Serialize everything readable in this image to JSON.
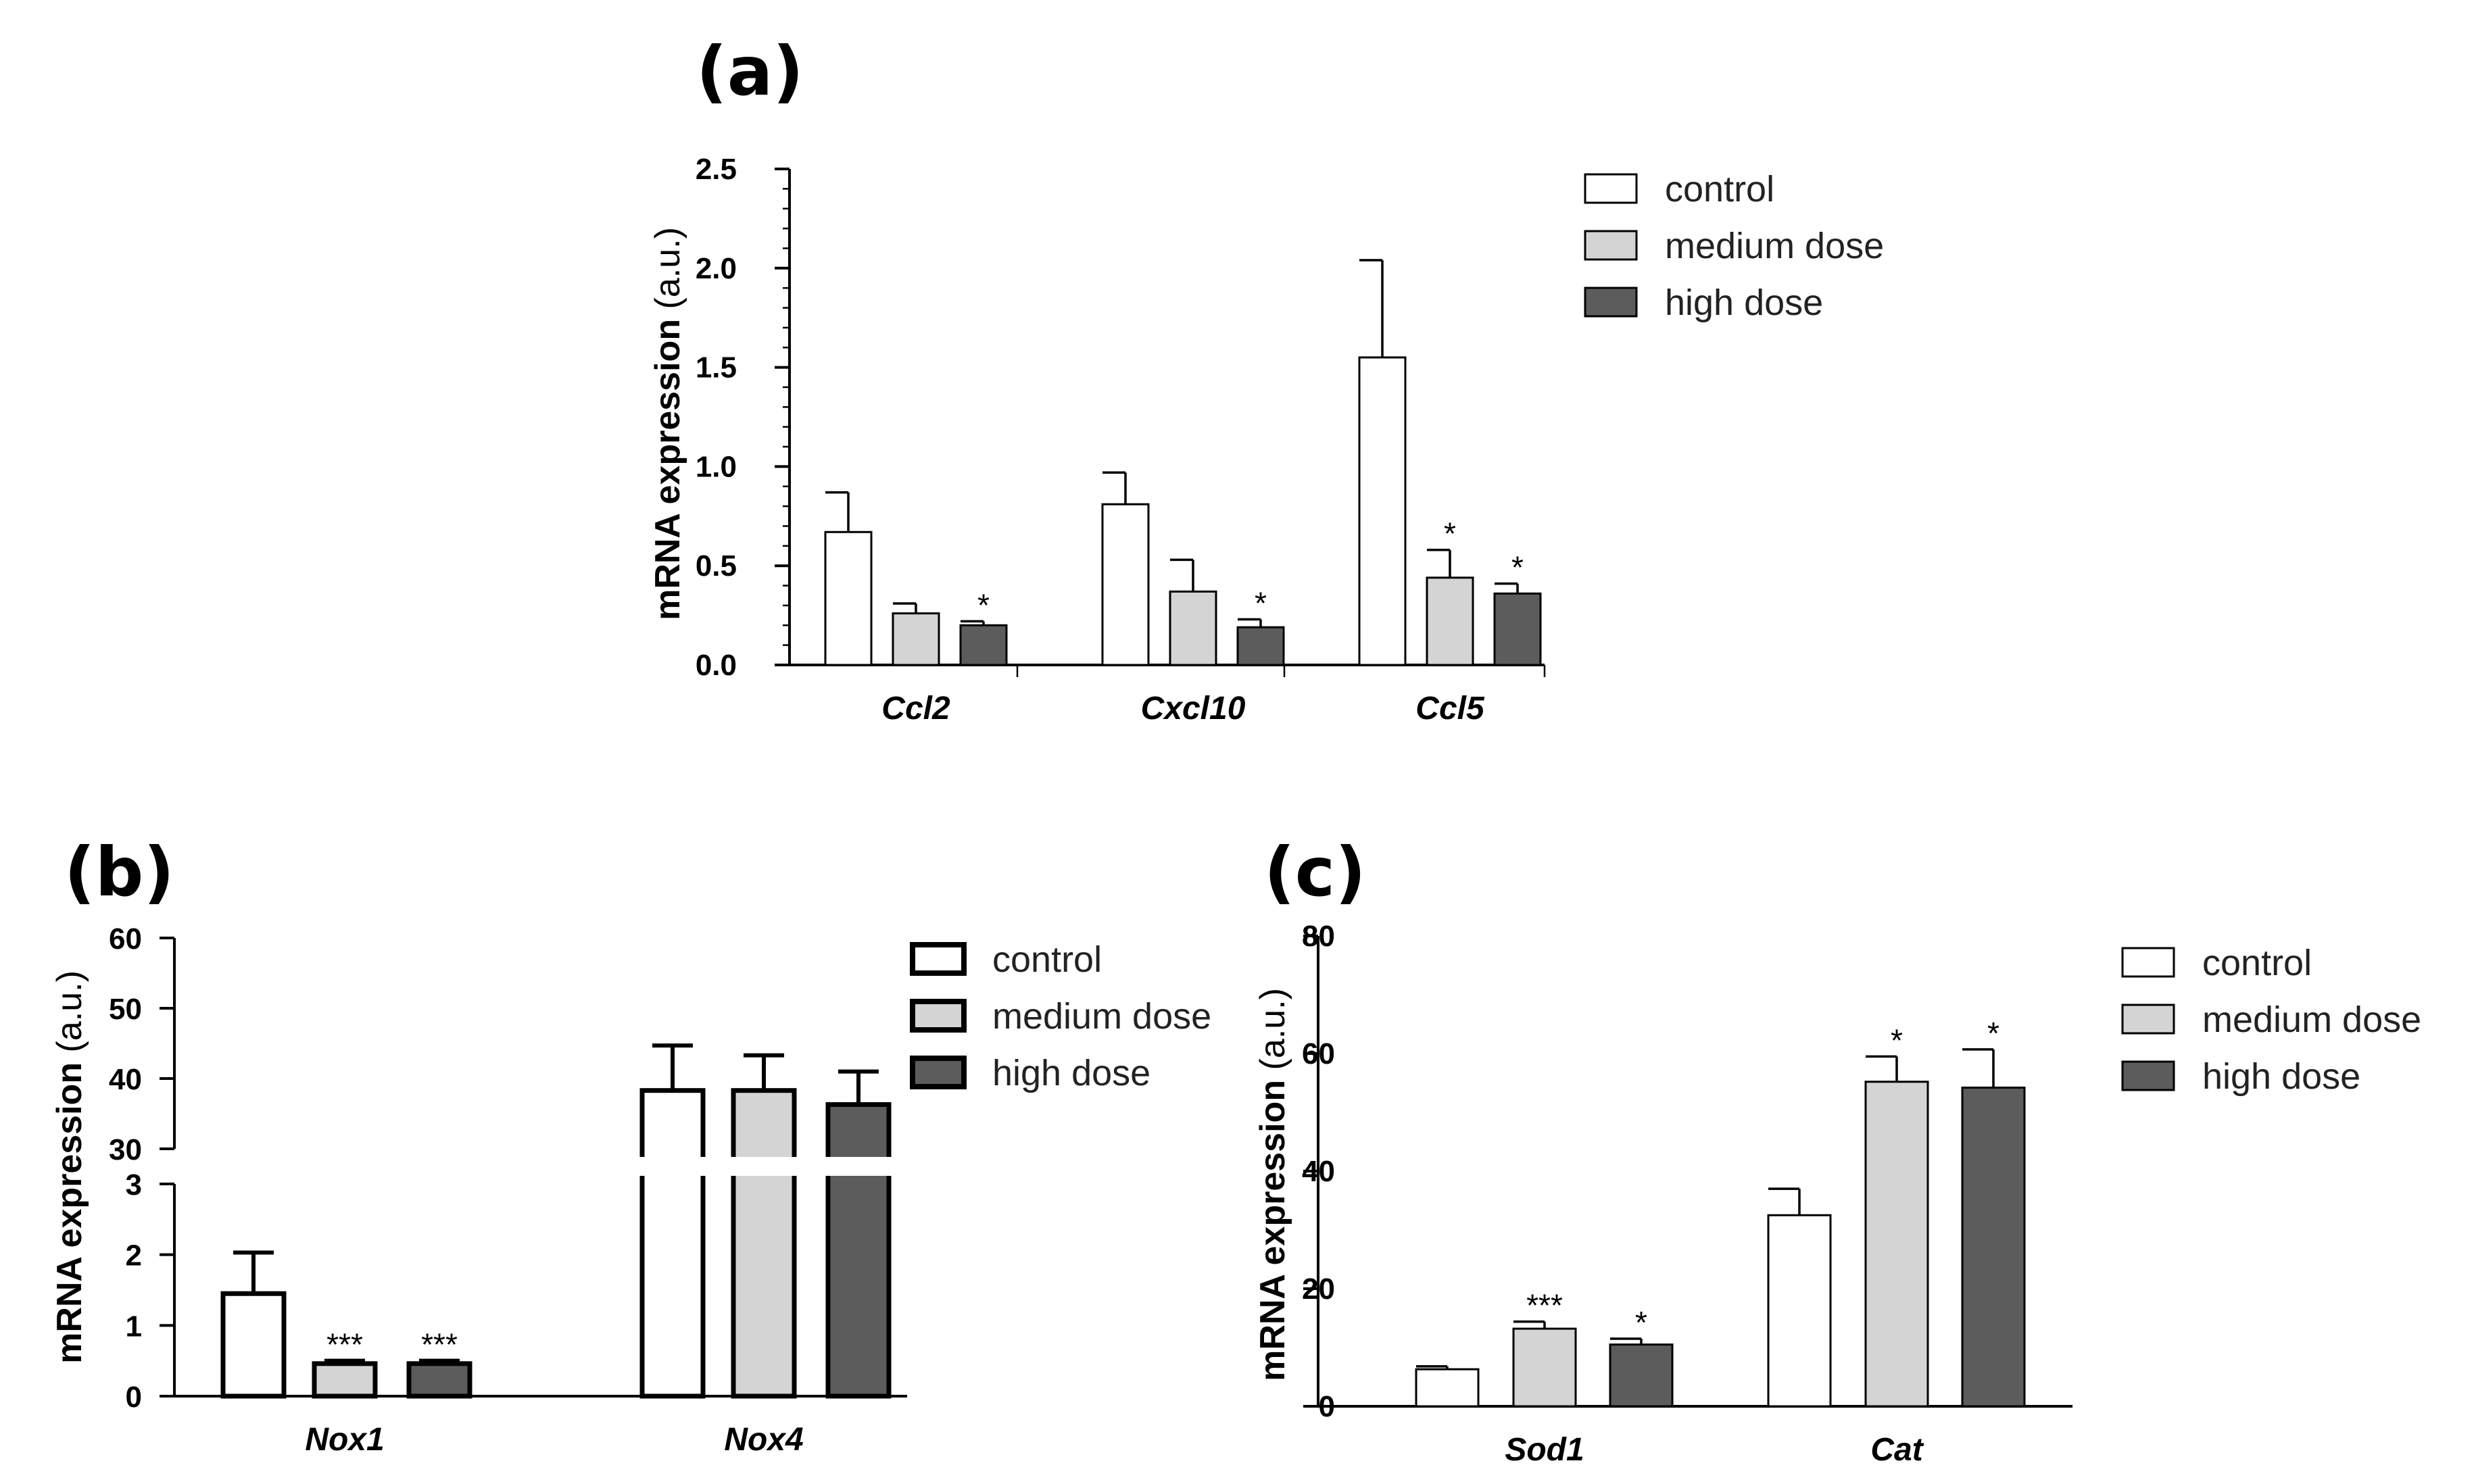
{
  "colors": {
    "control": "#ffffff",
    "medium_dose": "#d4d4d4",
    "high_dose": "#5c5c5c",
    "axis": "#000000"
  },
  "chart_data": [
    {
      "id": "a",
      "panel_label": "(a)",
      "type": "bar",
      "title": "",
      "ylabel_bold": "mRNA expression",
      "ylabel_unit": "(a.u.)",
      "categories": [
        "Ccl2",
        "Cxcl10",
        "Ccl5"
      ],
      "ylim": [
        0,
        2.5
      ],
      "yticks": [
        0,
        0.5,
        1.0,
        1.5,
        2.0,
        2.5
      ],
      "ytick_labels": [
        "0.0",
        "0.5",
        "1.0",
        "1.5",
        "2.0",
        "2.5"
      ],
      "series": [
        {
          "name": "control",
          "color": "#ffffff",
          "values": [
            0.67,
            0.81,
            1.55
          ],
          "errors": [
            0.2,
            0.16,
            0.49
          ],
          "stars": [
            "",
            "",
            ""
          ]
        },
        {
          "name": "medium dose",
          "color": "#d4d4d4",
          "values": [
            0.26,
            0.37,
            0.44
          ],
          "errors": [
            0.05,
            0.16,
            0.14
          ],
          "stars": [
            "",
            "",
            "*"
          ]
        },
        {
          "name": "high dose",
          "color": "#5c5c5c",
          "values": [
            0.2,
            0.19,
            0.36
          ],
          "errors": [
            0.02,
            0.04,
            0.05
          ],
          "stars": [
            "*",
            "*",
            "*"
          ]
        }
      ],
      "legend": [
        "control",
        "medium dose",
        "high dose"
      ]
    },
    {
      "id": "b",
      "panel_label": "(b)",
      "type": "bar",
      "title": "",
      "ylabel_bold": "mRNA expression",
      "ylabel_unit": "(a.u.)",
      "categories": [
        "Nox1",
        "Nox4"
      ],
      "broken_axis": {
        "lower": [
          0,
          3
        ],
        "upper": [
          30,
          60
        ]
      },
      "yticks_lower": [
        0,
        1,
        2,
        3
      ],
      "yticks_upper": [
        30,
        40,
        50,
        60
      ],
      "ytick_labels_lower": [
        "0",
        "1",
        "2",
        "3"
      ],
      "ytick_labels_upper": [
        "30",
        "40",
        "50",
        "60"
      ],
      "series": [
        {
          "name": "control",
          "color": "#ffffff",
          "values": [
            1.45,
            38.3
          ],
          "errors": [
            0.58,
            6.4
          ],
          "stars": [
            "",
            ""
          ]
        },
        {
          "name": "medium dose",
          "color": "#d4d4d4",
          "values": [
            0.46,
            38.3
          ],
          "errors": [
            0.04,
            5.0
          ],
          "stars": [
            "***",
            ""
          ]
        },
        {
          "name": "high dose",
          "color": "#5c5c5c",
          "values": [
            0.46,
            36.3
          ],
          "errors": [
            0.04,
            4.7
          ],
          "stars": [
            "***",
            ""
          ]
        }
      ],
      "legend": [
        "control",
        "medium dose",
        "high dose"
      ]
    },
    {
      "id": "c",
      "panel_label": "(c)",
      "type": "bar",
      "title": "",
      "ylabel_bold": "mRNA expression",
      "ylabel_unit": "(a.u.)",
      "categories": [
        "Sod1",
        "Cat"
      ],
      "ylim": [
        0,
        80
      ],
      "yticks": [
        0,
        20,
        40,
        60,
        80
      ],
      "ytick_labels": [
        "0",
        "20",
        "40",
        "60",
        "80"
      ],
      "series": [
        {
          "name": "control",
          "color": "#ffffff",
          "values": [
            6.3,
            32.5
          ],
          "errors": [
            0.5,
            4.5
          ],
          "stars": [
            "",
            ""
          ]
        },
        {
          "name": "medium dose",
          "color": "#d4d4d4",
          "values": [
            13.2,
            55.2
          ],
          "errors": [
            1.2,
            4.3
          ],
          "stars": [
            "***",
            "*"
          ]
        },
        {
          "name": "high dose",
          "color": "#5c5c5c",
          "values": [
            10.5,
            54.2
          ],
          "errors": [
            1.0,
            6.5
          ],
          "stars": [
            "*",
            "*"
          ]
        }
      ],
      "legend": [
        "control",
        "medium dose",
        "high dose"
      ]
    }
  ]
}
